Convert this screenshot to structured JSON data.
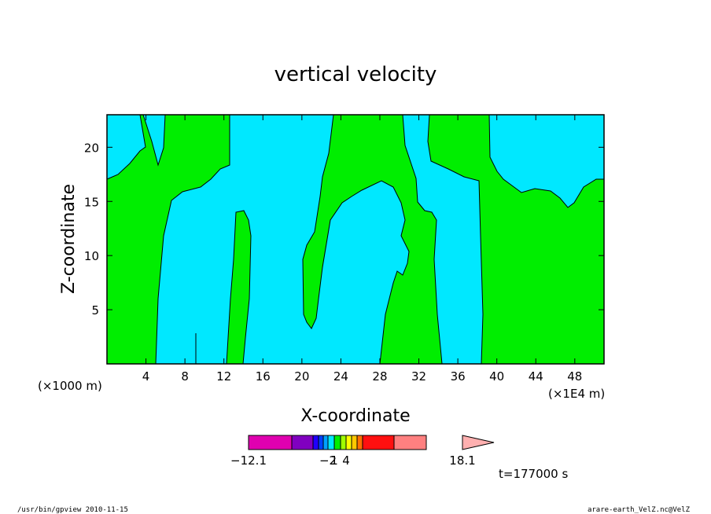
{
  "chart_data": {
    "type": "heatmap",
    "title": "vertical velocity",
    "xlabel": "X-coordinate",
    "ylabel": "Z-coordinate",
    "x_units_label": "(×1000 m)",
    "x_scale_label": "(×1E4 m)",
    "xlim": [
      0,
      51
    ],
    "ylim": [
      0,
      23
    ],
    "x_ticks": [
      "4",
      "8",
      "12",
      "16",
      "20",
      "24",
      "28",
      "32",
      "36",
      "40",
      "44",
      "48"
    ],
    "y_ticks": [
      "5",
      "10",
      "15",
      "20"
    ],
    "colors": {
      "negative": "#00e8ff",
      "positive": "#00ee00",
      "contour": "#000000"
    },
    "colorbar": {
      "colors": [
        "#e000b0",
        "#8000c0",
        "#2000ff",
        "#0040ff",
        "#00a0ff",
        "#00e8ff",
        "#00ee00",
        "#a0ff00",
        "#ffff00",
        "#ffc800",
        "#ff7000",
        "#ff1010",
        "#ff8080",
        "#ffb0b0"
      ],
      "tick_labels": [
        {
          "label": "−12.1",
          "index": 0
        },
        {
          "label": "−2",
          "index": 5
        },
        {
          "label": "1",
          "index": 6
        },
        {
          "label": "4",
          "index": 8
        },
        {
          "label": "18.1",
          "index": 13
        }
      ]
    },
    "time_label": "t=177000 s"
  },
  "footer": {
    "left": "/usr/bin/gpview  2010-11-15",
    "right": "arare-earth_VelZ.nc@VelZ"
  }
}
